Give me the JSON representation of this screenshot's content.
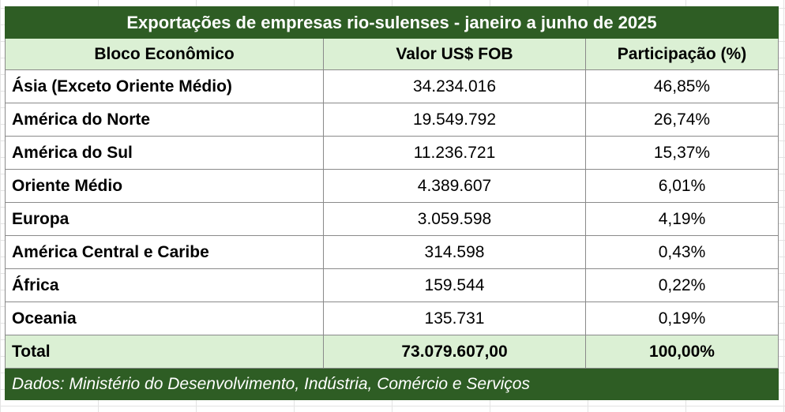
{
  "table": {
    "title": "Exportações de empresas rio-sulenses - janeiro a junho de 2025",
    "headers": [
      "Bloco Econômico",
      "Valor US$ FOB",
      "Participação (%)"
    ],
    "rows": [
      {
        "bloco": "Ásia (Exceto Oriente Médio)",
        "valor": "34.234.016",
        "participacao": "46,85%"
      },
      {
        "bloco": "América do Norte",
        "valor": "19.549.792",
        "participacao": "26,74%"
      },
      {
        "bloco": "América do Sul",
        "valor": "11.236.721",
        "participacao": "15,37%"
      },
      {
        "bloco": "Oriente Médio",
        "valor": "4.389.607",
        "participacao": "6,01%"
      },
      {
        "bloco": "Europa",
        "valor": "3.059.598",
        "participacao": "4,19%"
      },
      {
        "bloco": "América Central e Caribe",
        "valor": "314.598",
        "participacao": "0,43%"
      },
      {
        "bloco": "África",
        "valor": "159.544",
        "participacao": "0,22%"
      },
      {
        "bloco": "Oceania",
        "valor": "135.731",
        "participacao": "0,19%"
      }
    ],
    "total": {
      "bloco": "Total",
      "valor": "73.079.607,00",
      "participacao": "100,00%"
    },
    "source": "Dados: Ministério do Desenvolvimento, Indústria, Comércio e Serviços"
  },
  "colors": {
    "title_background": "#2e5d24",
    "header_background": "#dbf0d4",
    "border": "#8a8a8a"
  }
}
